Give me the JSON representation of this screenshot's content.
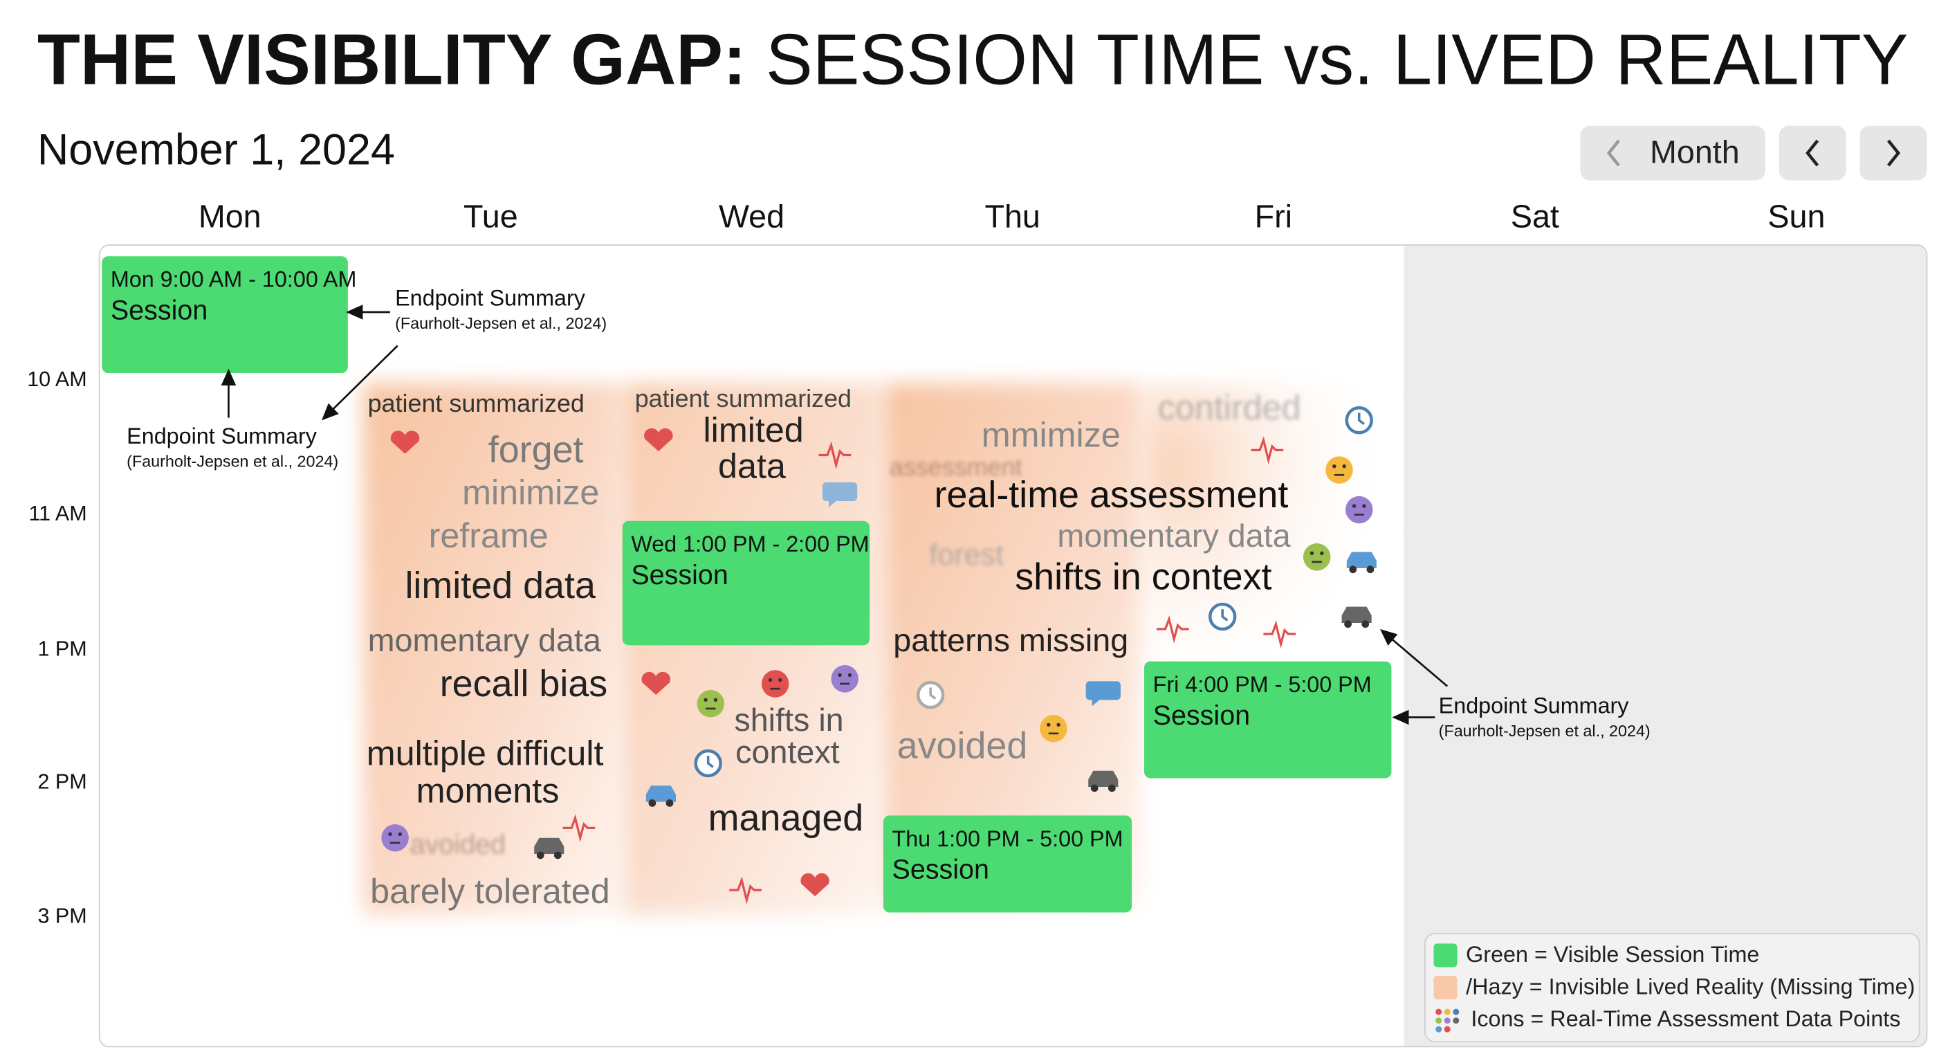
{
  "header": {
    "title_bold": "THE VISIBILITY GAP:",
    "title_rest": "SESSION TIME vs. LIVED REALITY",
    "date": "November 1, 2024"
  },
  "toolbar": {
    "view": "Month"
  },
  "calendar": {
    "days": [
      "Mon",
      "Tue",
      "Wed",
      "Thu",
      "Fri",
      "Sat",
      "Sun"
    ],
    "times": [
      "10 AM",
      "11 AM",
      "1 PM",
      "2 PM",
      "3 PM"
    ],
    "events": [
      {
        "time": "Mon 9:00 AM - 10:00 AM",
        "label": "Session"
      },
      {
        "time": "Wed 1:00 PM - 2:00 PM",
        "label": "Session"
      },
      {
        "time": "Fri 4:00 PM - 5:00 PM",
        "label": "Session"
      },
      {
        "time": "Thu 1:00 PM - 5:00 PM",
        "label": "Session"
      }
    ]
  },
  "annotations": [
    {
      "title": "Endpoint Summary",
      "citation": "(Faurholt-Jepsen et al., 2024)"
    },
    {
      "title": "Endpoint Summary",
      "citation": "(Faurholt-Jepsen et al., 2024)"
    },
    {
      "title": "Endpoint Summary",
      "citation": "(Faurholt-Jepsen et al., 2024)"
    }
  ],
  "lived_reality_words": [
    "patient summarized",
    "forget",
    "minimize",
    "reframe",
    "limited data",
    "momentary data",
    "recall bias",
    "multiple difficult",
    "moments",
    "barely tolerated",
    "patient summarized",
    "limited",
    "data",
    "shifts in",
    "context",
    "managed",
    "mmimize",
    "real-time assessment",
    "momentary data",
    "shifts in context",
    "patterns missing",
    "avoided",
    "contirded",
    "assessment",
    "forest",
    "avoided"
  ],
  "legend": [
    "Green = Visible Session Time",
    "/Hazy = Invisible Lived Reality (Missing Time)",
    "Icons = Real-Time Assessment Data Points"
  ]
}
